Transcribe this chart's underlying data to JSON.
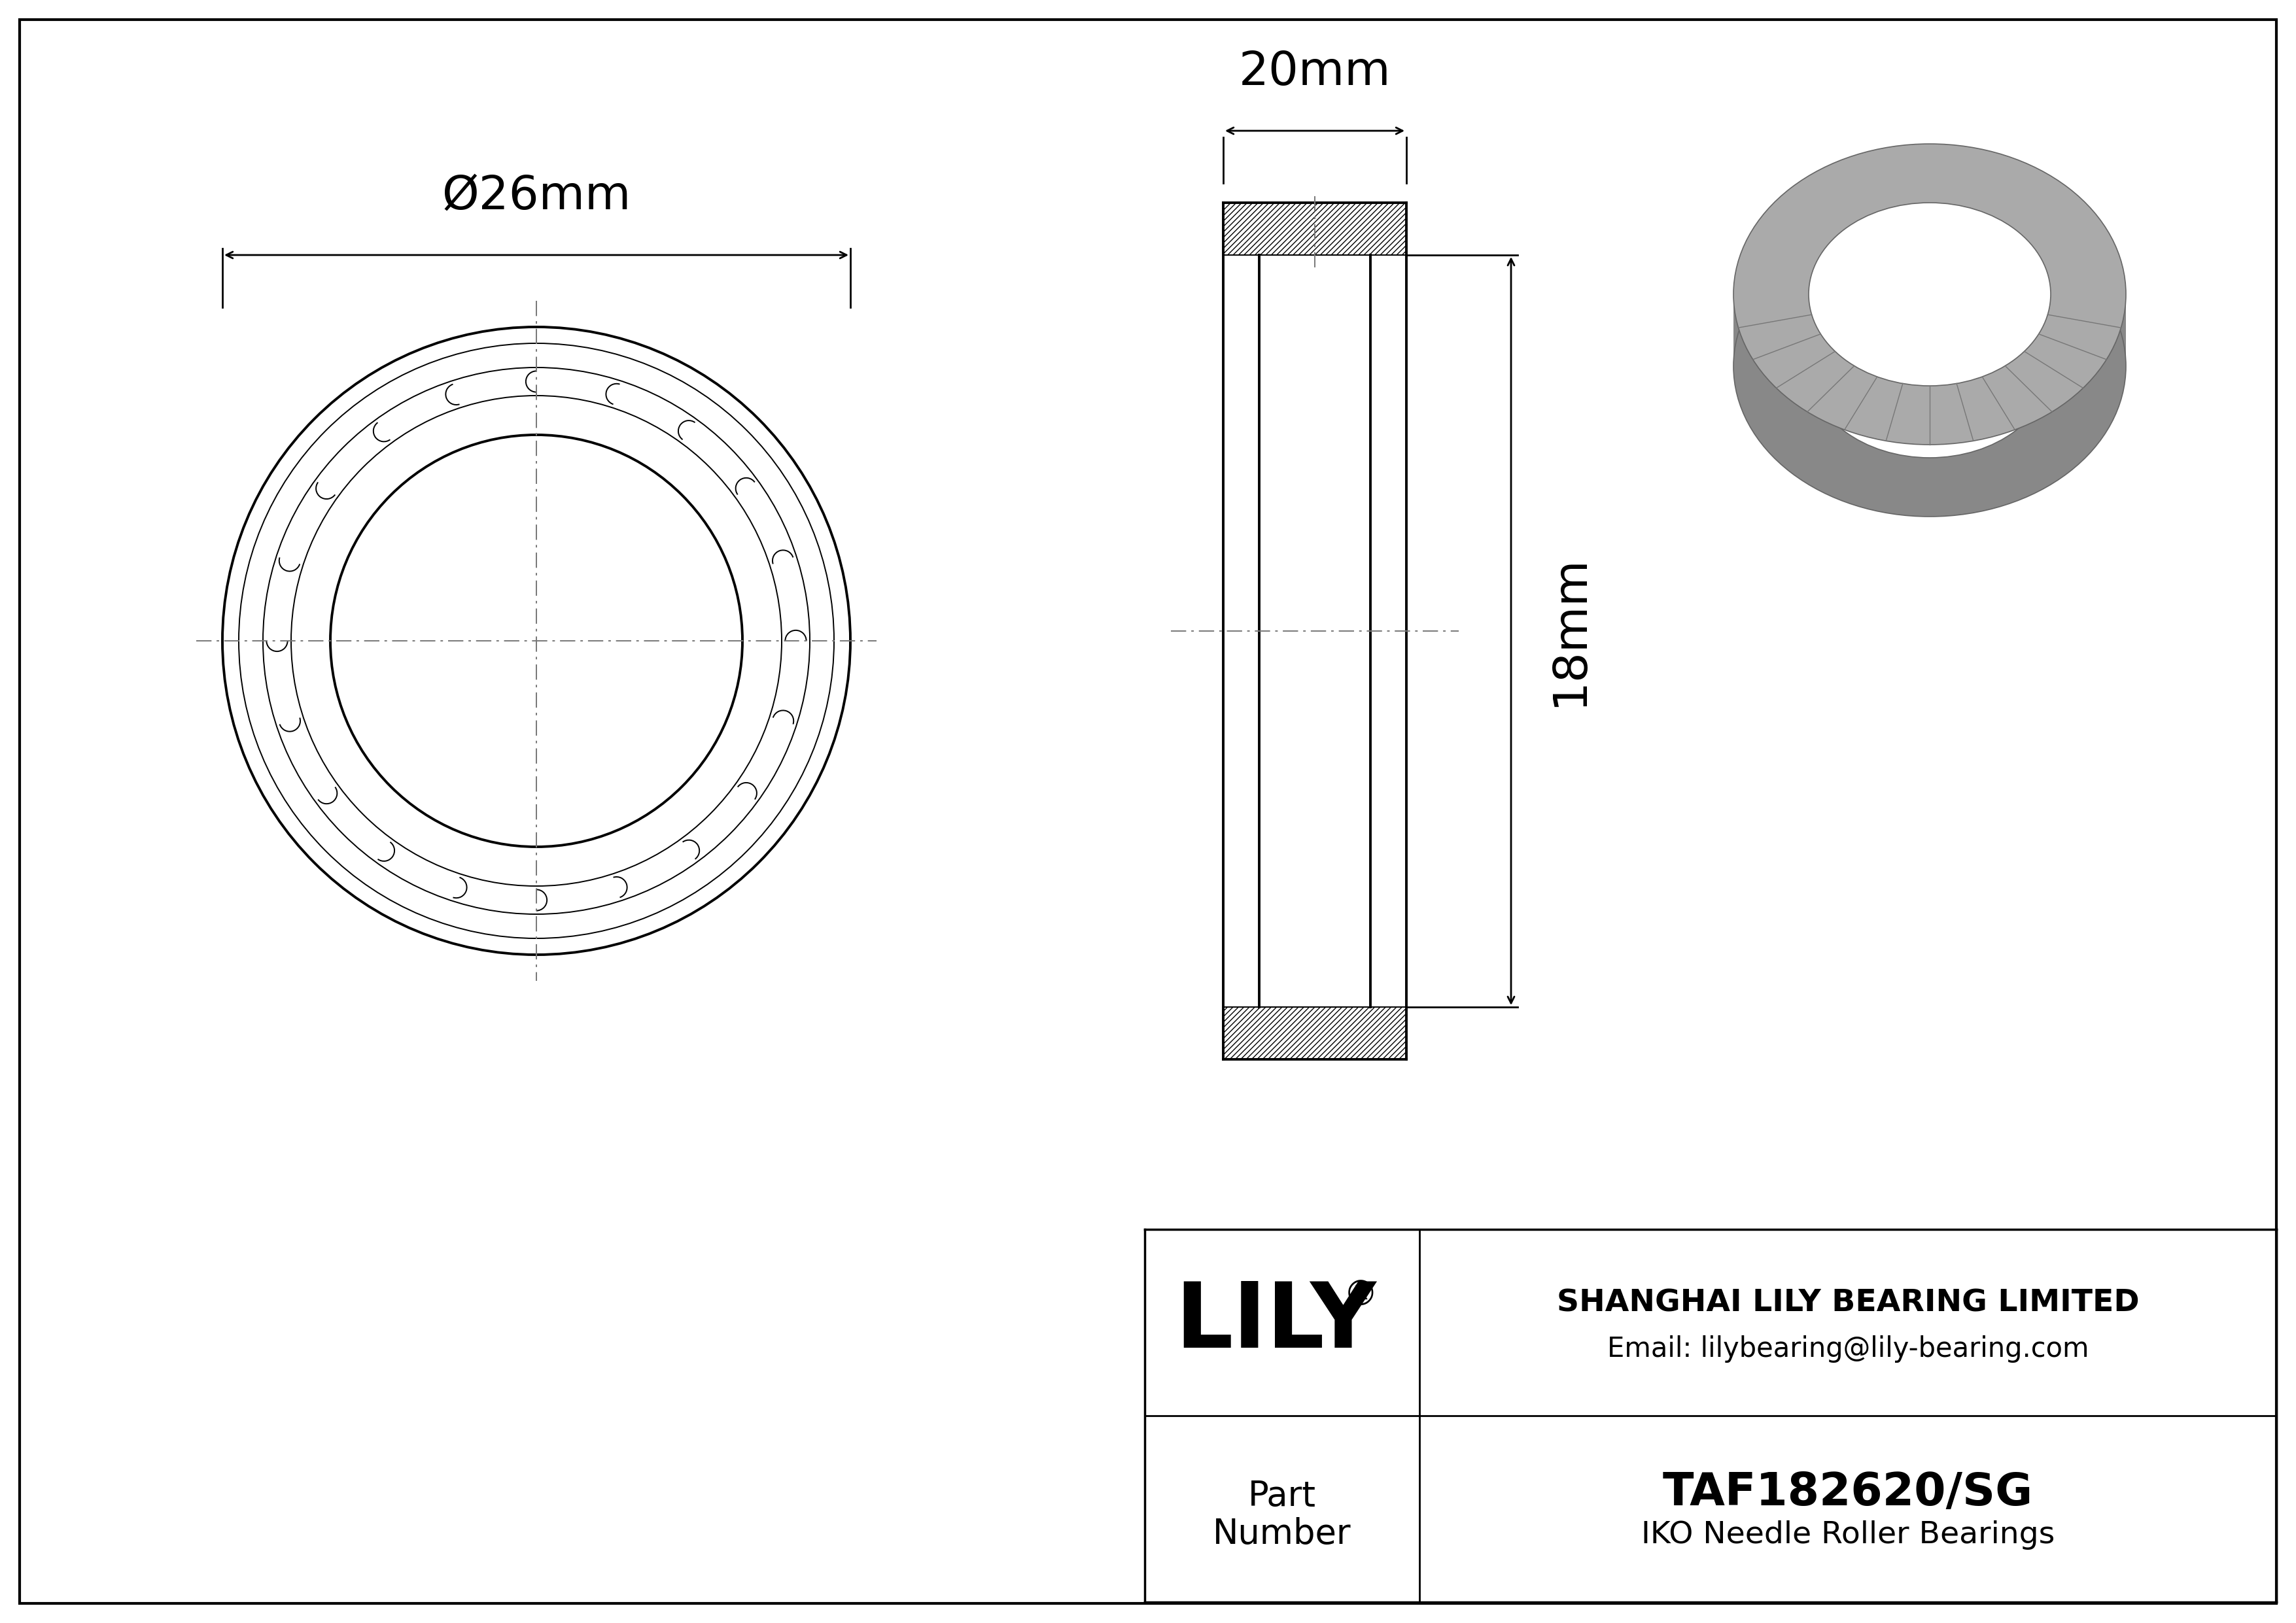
{
  "bg_color": "#ffffff",
  "line_color": "#000000",
  "cl_color": "#777777",
  "gray_face": "#aaaaaa",
  "gray_dark": "#888888",
  "gray_light": "#cccccc",
  "gray_med": "#999999",
  "title_company": "SHANGHAI LILY BEARING LIMITED",
  "title_email": "Email: lilybearing@lily-bearing.com",
  "part_number": "TAF182620/SG",
  "part_type": "IKO Needle Roller Bearings",
  "brand": "LILY",
  "dim_outer_diameter": "Ø26mm",
  "dim_width": "20mm",
  "dim_height": "18mm",
  "num_rollers": 20,
  "lw_main": 2.8,
  "lw_thin": 1.4,
  "lw_dim": 2.0,
  "lw_cl": 1.4
}
